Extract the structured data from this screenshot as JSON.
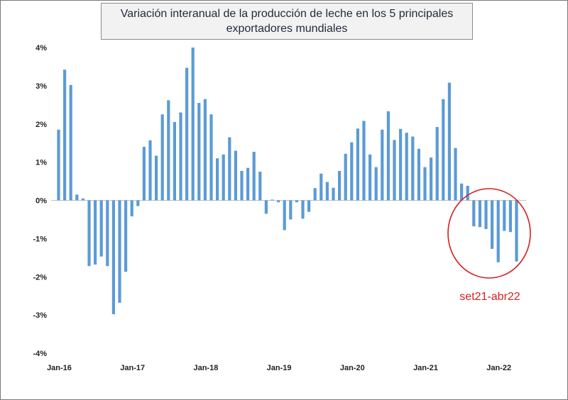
{
  "chart_data": {
    "type": "bar",
    "title": "Variación interanual de la producción de leche en los 5 principales exportadores mundiales",
    "xlabel": "",
    "ylabel": "",
    "ylim": [
      -4,
      4
    ],
    "y_ticks": [
      "4%",
      "3%",
      "2%",
      "1%",
      "0%",
      "-1%",
      "-2%",
      "-3%",
      "-4%"
    ],
    "x_tick_labels": [
      "Jan-16",
      "Jan-17",
      "Jan-18",
      "Jan-19",
      "Jan-20",
      "Jan-21",
      "Jan-22"
    ],
    "start": "2016-01",
    "grid": false,
    "bar_color": "#5b9bd5",
    "series": [
      {
        "values": [
          1.85,
          3.42,
          3.02,
          0.15,
          0.05,
          -1.72,
          -1.68,
          -1.47,
          -1.72,
          -2.98,
          -2.68,
          -1.87,
          -0.42,
          -0.15,
          1.4,
          1.57,
          1.17,
          2.25,
          2.62,
          2.05,
          2.3,
          3.47,
          4.0,
          2.55,
          2.65,
          2.25,
          1.1,
          1.2,
          1.65,
          1.3,
          0.77,
          0.85,
          1.27,
          0.75,
          -0.35,
          0.02,
          -0.05,
          -0.78,
          -0.5,
          -0.05,
          -0.48,
          -0.3,
          0.32,
          0.7,
          0.48,
          0.33,
          0.77,
          1.22,
          1.52,
          1.88,
          2.08,
          1.2,
          0.87,
          1.85,
          2.33,
          1.58,
          1.87,
          1.77,
          1.67,
          1.35,
          0.87,
          1.12,
          1.92,
          2.65,
          3.08,
          1.37,
          0.44,
          0.38,
          -0.68,
          -0.7,
          -0.75,
          -1.27,
          -1.62,
          -0.8,
          -0.83,
          -1.6
        ]
      }
    ],
    "annotation": {
      "text": "set21-abr22",
      "color": "#d42020"
    }
  }
}
